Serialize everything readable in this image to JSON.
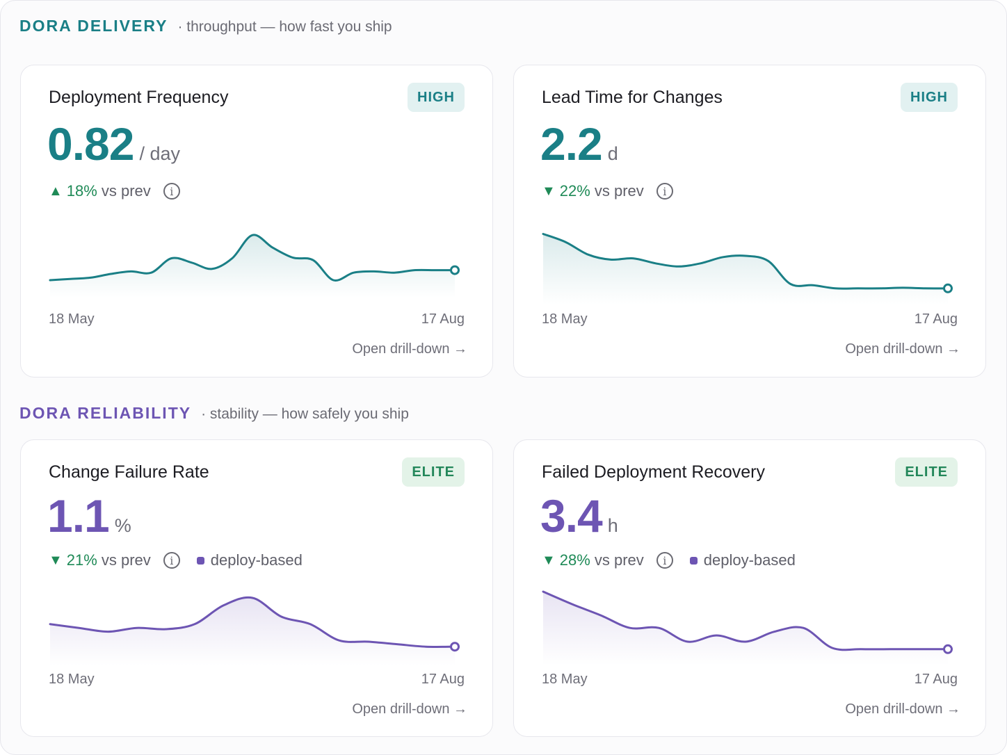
{
  "colors": {
    "delivery": "#1a7f86",
    "reliability": "#6d55b3",
    "delta_good": "#1f8a57"
  },
  "sections": {
    "delivery": {
      "name": "DORA DELIVERY",
      "subtitle": "· throughput — how fast you ship"
    },
    "reliability": {
      "name": "DORA RELIABILITY",
      "subtitle": "· stability — how safely you ship"
    }
  },
  "cards": [
    {
      "title": "Deployment Frequency",
      "badge": "HIGH",
      "value": "0.82",
      "unit": "/ day",
      "delta_arrow": "▲",
      "delta_pct": "18%",
      "delta_label": "vs prev",
      "info_icon": "info-icon",
      "start_date": "18 May",
      "end_date": "17 Aug",
      "drill_label": "Open drill-down →",
      "trend": [
        0.1,
        0.12,
        0.14,
        0.2,
        0.24,
        0.22,
        0.45,
        0.38,
        0.28,
        0.45,
        0.82,
        0.62,
        0.46,
        0.42,
        0.1,
        0.22,
        0.24,
        0.22,
        0.26,
        0.26,
        0.26
      ]
    },
    {
      "title": "Lead Time for Changes",
      "badge": "HIGH",
      "value": "2.2",
      "unit": "d",
      "delta_arrow": "▼",
      "delta_pct": "22%",
      "delta_label": "vs prev",
      "info_icon": "info-icon",
      "start_date": "18 May",
      "end_date": "17 Aug",
      "drill_label": "Open drill-down →",
      "trend": [
        0.95,
        0.82,
        0.62,
        0.54,
        0.56,
        0.48,
        0.43,
        0.48,
        0.58,
        0.6,
        0.52,
        0.15,
        0.13,
        0.08,
        0.08,
        0.08,
        0.09,
        0.08,
        0.08
      ]
    },
    {
      "title": "Change Failure Rate",
      "badge": "ELITE",
      "value": "1.1",
      "unit": "%",
      "delta_arrow": "▼",
      "delta_pct": "21%",
      "delta_label": "vs prev",
      "info_icon": "info-icon",
      "chip": "deploy-based",
      "start_date": "18 May",
      "end_date": "17 Aug",
      "drill_label": "Open drill-down →",
      "trend": [
        0.48,
        0.42,
        0.36,
        0.42,
        0.4,
        0.48,
        0.78,
        0.9,
        0.6,
        0.48,
        0.22,
        0.2,
        0.16,
        0.12,
        0.12
      ]
    },
    {
      "title": "Failed Deployment Recovery",
      "badge": "ELITE",
      "value": "3.4",
      "unit": "h",
      "delta_arrow": "▼",
      "delta_pct": "28%",
      "delta_label": "vs prev",
      "info_icon": "info-icon",
      "chip": "deploy-based",
      "start_date": "18 May",
      "end_date": "17 Aug",
      "drill_label": "Open drill-down →",
      "trend": [
        1.0,
        0.8,
        0.62,
        0.42,
        0.42,
        0.2,
        0.3,
        0.2,
        0.36,
        0.42,
        0.1,
        0.08,
        0.08,
        0.08,
        0.08
      ]
    }
  ]
}
